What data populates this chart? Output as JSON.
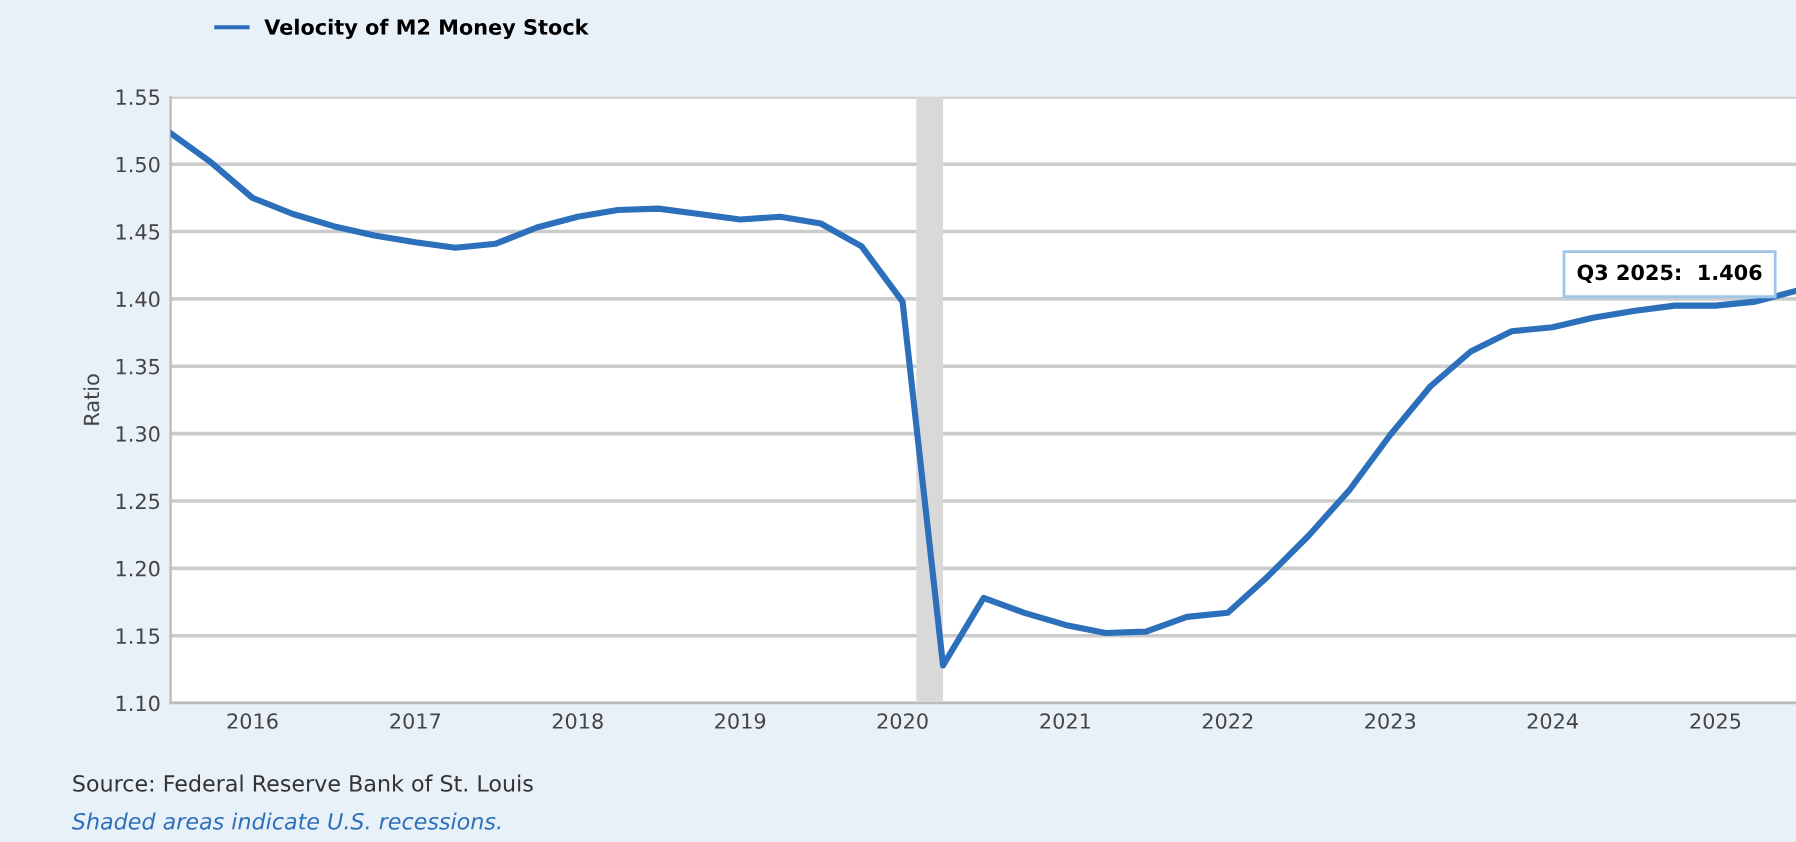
{
  "chart_data": {
    "type": "line",
    "ylabel": "Ratio",
    "x": [
      "2015-07-01",
      "2015-10-01",
      "2016-01-01",
      "2016-04-01",
      "2016-07-01",
      "2016-10-01",
      "2017-01-01",
      "2017-04-01",
      "2017-07-01",
      "2017-10-01",
      "2018-01-01",
      "2018-04-01",
      "2018-07-01",
      "2018-10-01",
      "2019-01-01",
      "2019-04-01",
      "2019-07-01",
      "2019-10-01",
      "2020-01-01",
      "2020-04-01",
      "2020-07-01",
      "2020-10-01",
      "2021-01-01",
      "2021-04-01",
      "2021-07-01",
      "2021-10-01",
      "2022-01-01",
      "2022-04-01",
      "2022-07-01",
      "2022-10-01",
      "2023-01-01",
      "2023-04-01",
      "2023-07-01",
      "2023-10-01",
      "2024-01-01",
      "2024-04-01",
      "2024-07-01",
      "2024-10-01",
      "2025-01-01",
      "2025-04-01",
      "2025-07-01"
    ],
    "series": [
      {
        "name": "Velocity of M2 Money Stock",
        "color": "#2c6fbb",
        "values": [
          1.523,
          1.501,
          1.475,
          1.463,
          1.454,
          1.447,
          1.442,
          1.438,
          1.441,
          1.453,
          1.461,
          1.466,
          1.467,
          1.463,
          1.459,
          1.461,
          1.456,
          1.439,
          1.398,
          1.128,
          1.178,
          1.167,
          1.158,
          1.152,
          1.153,
          1.164,
          1.167,
          1.194,
          1.224,
          1.258,
          1.299,
          1.335,
          1.361,
          1.376,
          1.379,
          1.386,
          1.391,
          1.395,
          1.395,
          1.398,
          1.406
        ]
      }
    ],
    "xlim": [
      "2015-07-01",
      "2025-07-01"
    ],
    "xticks": [
      {
        "value": "2016-01-01",
        "label": "2016"
      },
      {
        "value": "2017-01-01",
        "label": "2017"
      },
      {
        "value": "2018-01-01",
        "label": "2018"
      },
      {
        "value": "2019-01-01",
        "label": "2019"
      },
      {
        "value": "2020-01-01",
        "label": "2020"
      },
      {
        "value": "2021-01-01",
        "label": "2021"
      },
      {
        "value": "2022-01-01",
        "label": "2022"
      },
      {
        "value": "2023-01-01",
        "label": "2023"
      },
      {
        "value": "2024-01-01",
        "label": "2024"
      },
      {
        "value": "2025-01-01",
        "label": "2025"
      }
    ],
    "ylim": [
      1.1,
      1.55
    ],
    "yticks": [
      {
        "value": 1.1,
        "label": "1.10"
      },
      {
        "value": 1.15,
        "label": "1.15"
      },
      {
        "value": 1.2,
        "label": "1.20"
      },
      {
        "value": 1.25,
        "label": "1.25"
      },
      {
        "value": 1.3,
        "label": "1.30"
      },
      {
        "value": 1.35,
        "label": "1.35"
      },
      {
        "value": 1.4,
        "label": "1.40"
      },
      {
        "value": 1.45,
        "label": "1.45"
      },
      {
        "value": 1.5,
        "label": "1.50"
      },
      {
        "value": 1.55,
        "label": "1.55"
      }
    ],
    "bands": [
      {
        "axis": "x",
        "from": "2020-02-01",
        "to": "2020-04-01",
        "color": "#d9d9d9"
      }
    ],
    "annotations": [
      {
        "text": "Q3 2025:  1.406",
        "x": "2025-07-01",
        "y": 1.406
      },
      "Source: Federal Reserve Bank of St. Louis",
      "Shaded areas indicate U.S. recessions."
    ],
    "grid": "y",
    "legend": "top left",
    "marker": "none",
    "line_style": "solid"
  }
}
